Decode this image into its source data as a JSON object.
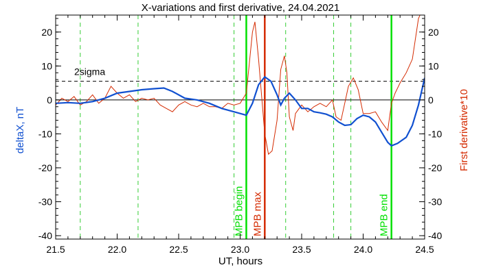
{
  "chart_data": {
    "type": "line",
    "title": "X-variations and first derivative, 24.04.2021",
    "xlabel": "UT, hours",
    "ylabel_left": "deltaX, nT",
    "ylabel_right": "First derivative*10",
    "xlim": [
      21.5,
      24.5
    ],
    "ylim": [
      -41,
      25
    ],
    "xticks": [
      21.5,
      22.0,
      22.5,
      23.0,
      23.5,
      24.0,
      24.5
    ],
    "xtick_labels": [
      "21.5",
      "22.0",
      "22.5",
      "23.0",
      "23.5",
      "24.0",
      "24.5"
    ],
    "yticks": [
      -40,
      -30,
      -20,
      -10,
      0,
      10,
      20
    ],
    "ytick_labels": [
      "-40",
      "-30",
      "-20",
      "-10",
      "0",
      "10",
      "20"
    ],
    "sigma_level": 5.5,
    "sigma_label": "2sigma",
    "grid_lines_x": [
      21.7,
      22.17,
      22.95,
      23.37,
      23.76,
      23.9
    ],
    "markers": [
      {
        "x": 23.05,
        "label": "MPB begin",
        "color": "#00e000"
      },
      {
        "x": 23.2,
        "label": "MPB max",
        "color": "#d42a00"
      },
      {
        "x": 24.23,
        "label": "MPB end",
        "color": "#00e000"
      }
    ],
    "series": [
      {
        "name": "deltaX, nT",
        "color": "#1050d0",
        "x": [
          21.5,
          21.6,
          21.7,
          21.8,
          21.9,
          22.0,
          22.1,
          22.2,
          22.3,
          22.38,
          22.45,
          22.55,
          22.65,
          22.75,
          22.85,
          22.95,
          23.0,
          23.05,
          23.1,
          23.15,
          23.2,
          23.25,
          23.3,
          23.33,
          23.36,
          23.4,
          23.45,
          23.5,
          23.55,
          23.6,
          23.65,
          23.7,
          23.75,
          23.8,
          23.85,
          23.9,
          23.95,
          24.0,
          24.05,
          24.1,
          24.15,
          24.2,
          24.23,
          24.28,
          24.35,
          24.4,
          24.45,
          24.5
        ],
        "values": [
          -1.0,
          -0.8,
          -1.0,
          -0.5,
          0.5,
          2.0,
          2.5,
          3.0,
          3.3,
          3.5,
          2.5,
          0.5,
          0.0,
          -1.0,
          -2.5,
          -3.5,
          -4.0,
          -4.5,
          -1.0,
          4.5,
          6.8,
          5.5,
          1.5,
          -1.5,
          0.5,
          2.0,
          0.0,
          -2.5,
          -2.5,
          -3.5,
          -3.8,
          -4.2,
          -5.0,
          -6.5,
          -7.5,
          -7.3,
          -5.5,
          -4.5,
          -5.0,
          -6.5,
          -9.5,
          -12.5,
          -13.5,
          -12.8,
          -11.0,
          -7.5,
          -1.5,
          6.5
        ]
      },
      {
        "name": "First derivative*10",
        "color": "#d42a00",
        "x": [
          21.5,
          21.55,
          21.6,
          21.65,
          21.7,
          21.75,
          21.8,
          21.85,
          21.9,
          21.95,
          22.0,
          22.05,
          22.1,
          22.15,
          22.2,
          22.25,
          22.3,
          22.35,
          22.4,
          22.45,
          22.5,
          22.55,
          22.6,
          22.65,
          22.7,
          22.75,
          22.8,
          22.85,
          22.9,
          22.95,
          23.0,
          23.05,
          23.1,
          23.12,
          23.15,
          23.2,
          23.23,
          23.26,
          23.3,
          23.33,
          23.36,
          23.38,
          23.4,
          23.43,
          23.45,
          23.5,
          23.55,
          23.6,
          23.65,
          23.7,
          23.75,
          23.78,
          23.82,
          23.85,
          23.88,
          23.92,
          23.96,
          24.0,
          24.05,
          24.1,
          24.15,
          24.2,
          24.23,
          24.26,
          24.3,
          24.35,
          24.4,
          24.45,
          24.5
        ],
        "values": [
          -1.5,
          0.5,
          -0.5,
          1.0,
          -1.5,
          -0.5,
          1.5,
          -1.0,
          0.5,
          4.0,
          2.0,
          0.5,
          1.5,
          -0.5,
          0.5,
          0.0,
          0.5,
          -1.5,
          -2.5,
          -3.5,
          -1.5,
          -0.5,
          -1.5,
          -2.0,
          -1.0,
          -2.0,
          -2.0,
          -2.5,
          -1.0,
          -1.5,
          -1.0,
          2.0,
          20.0,
          23.0,
          12.0,
          -10.0,
          -16.0,
          -15.0,
          -6.0,
          9.0,
          13.0,
          8.0,
          -5.0,
          -9.0,
          -4.0,
          -1.5,
          -3.5,
          -2.0,
          -1.0,
          -2.0,
          0.0,
          -5.0,
          -6.0,
          -1.0,
          4.0,
          6.5,
          3.0,
          -4.0,
          -4.0,
          -3.5,
          -6.5,
          -9.0,
          -1.0,
          2.0,
          5.0,
          8.0,
          12.0,
          24.0,
          28.0
        ]
      }
    ]
  }
}
